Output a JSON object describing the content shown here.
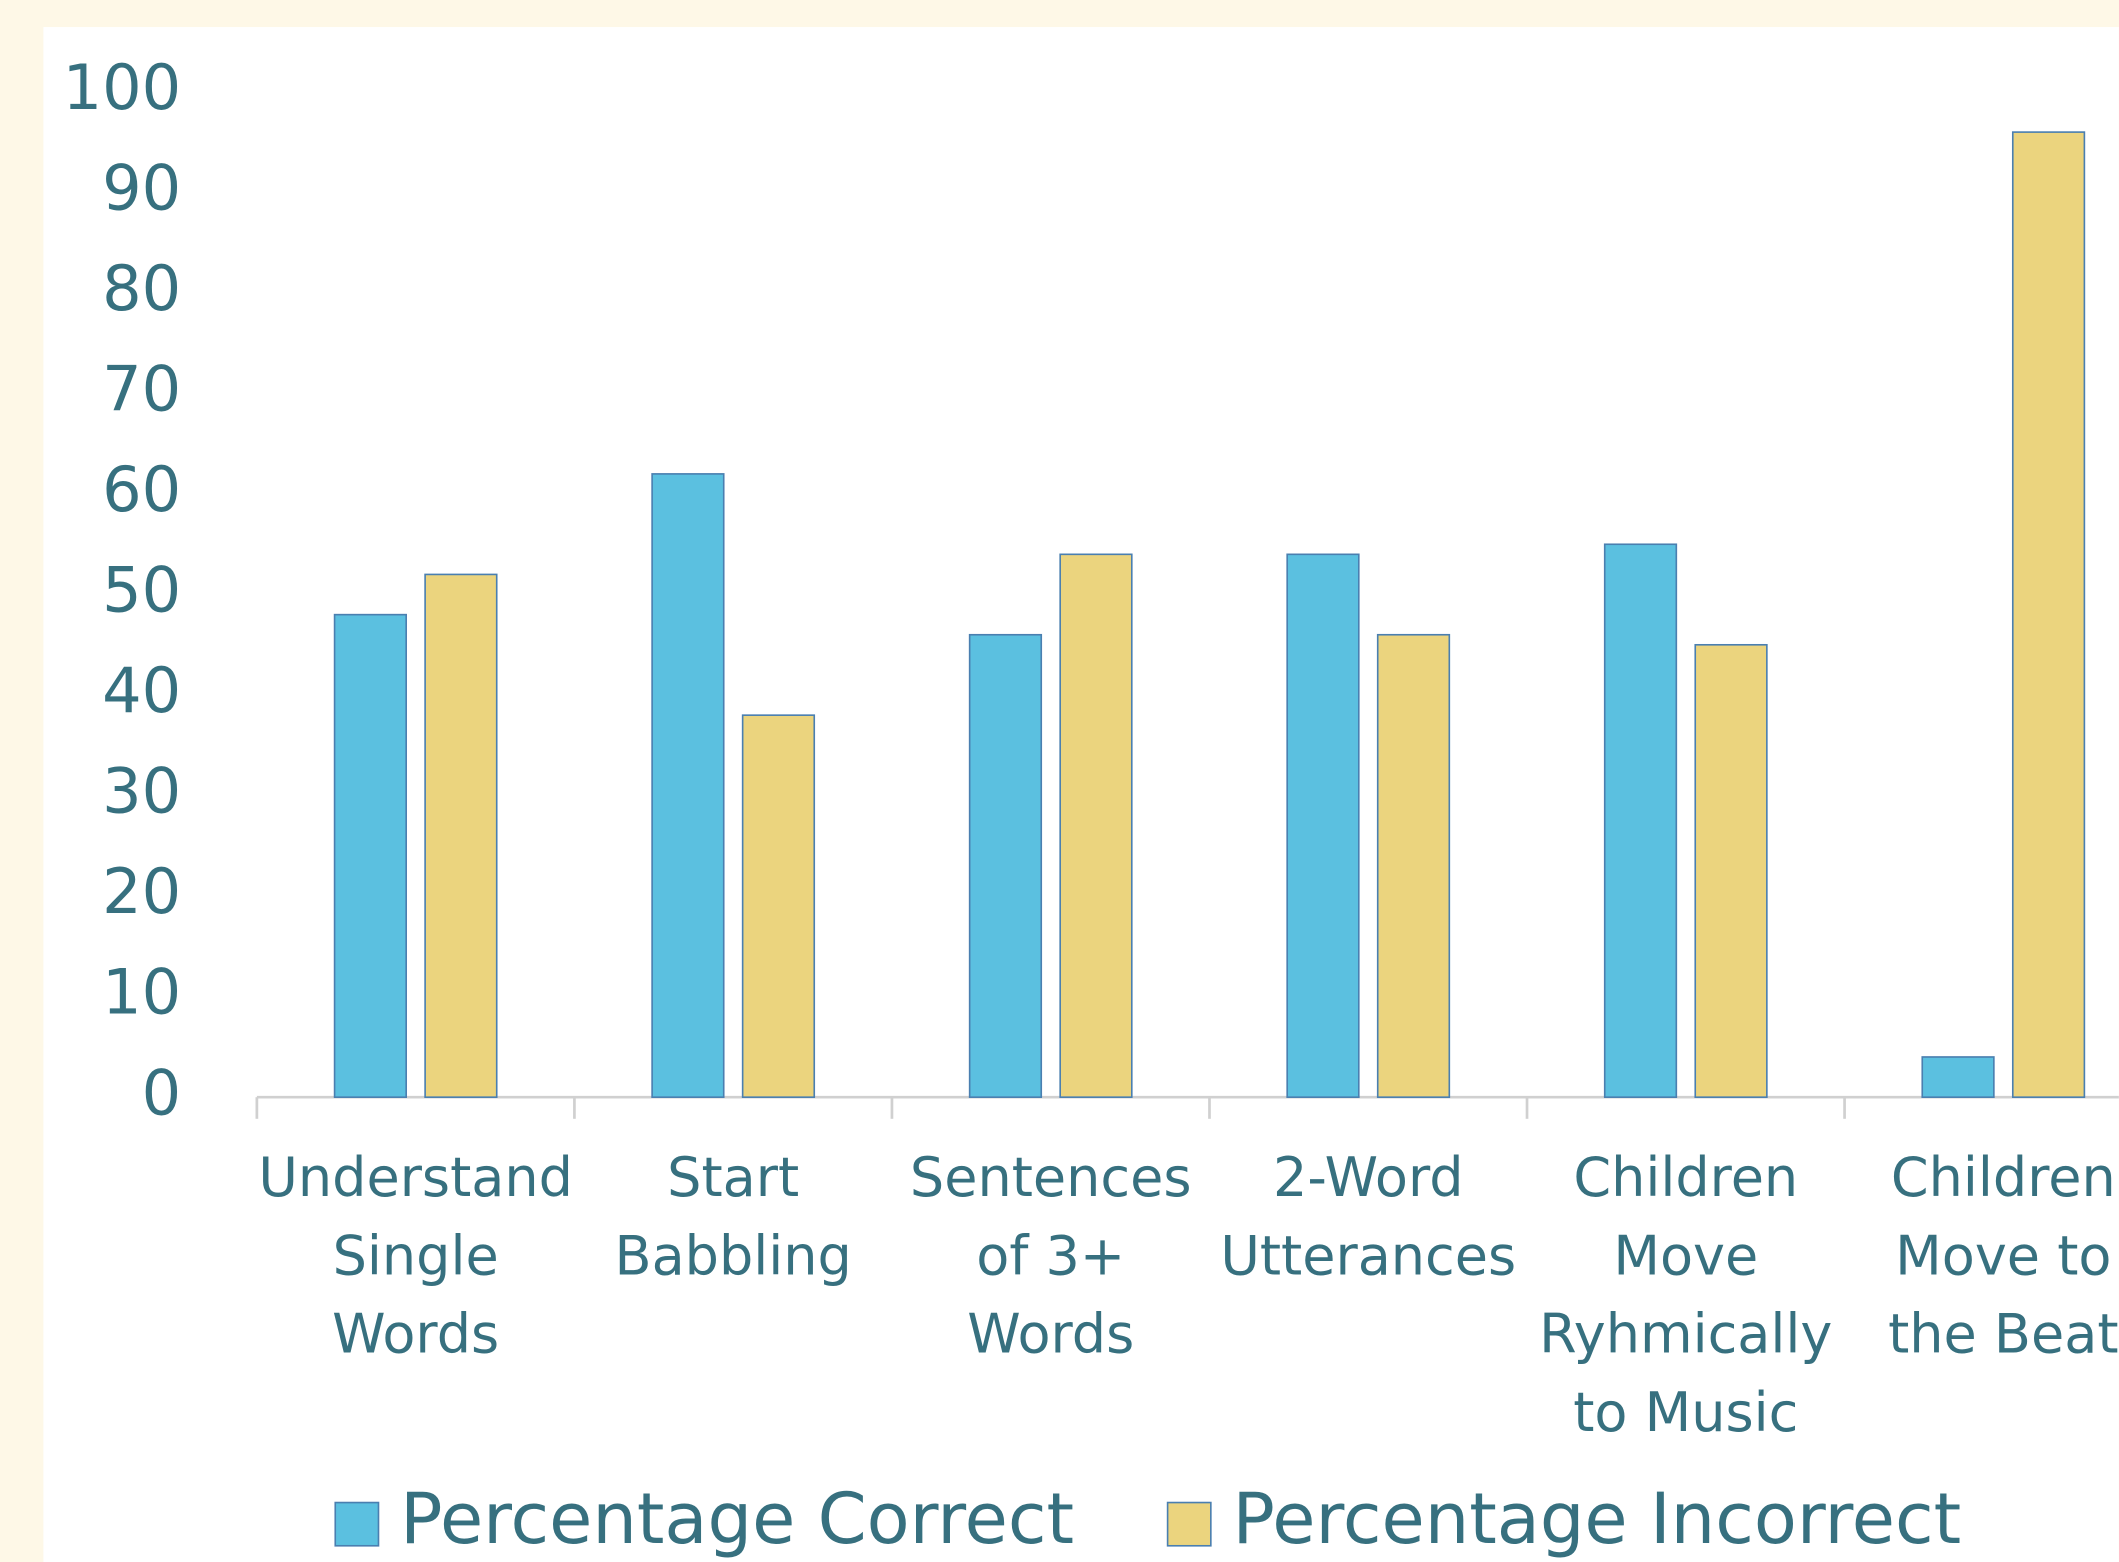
{
  "chart_data": {
    "type": "bar",
    "categories": [
      "Understand\nSingle\nWords",
      "Start\nBabbling",
      "Sentences\nof 3+\nWords",
      "2-Word\nUtterances",
      "Children\nMove\nRyhmically\nto Music",
      "Children\nMove to\nthe Beat"
    ],
    "series": [
      {
        "name": "Percentage Correct",
        "color": "#5bc0e0",
        "values": [
          48,
          62,
          46,
          54,
          55,
          4
        ]
      },
      {
        "name": "Percentage Incorrect",
        "color": "#ebd47e",
        "values": [
          52,
          38,
          54,
          46,
          45,
          96
        ]
      }
    ],
    "ylim": [
      0,
      100
    ],
    "yticks": [
      0,
      10,
      20,
      30,
      40,
      50,
      60,
      70,
      80,
      90,
      100
    ],
    "grid": false,
    "legend": "bottom"
  }
}
